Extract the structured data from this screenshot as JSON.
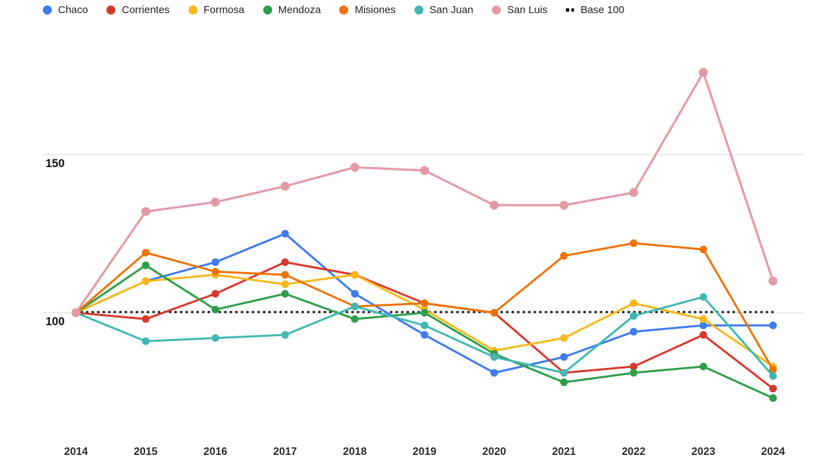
{
  "chart_data": {
    "type": "line",
    "title": "",
    "xlabel": "",
    "ylabel": "",
    "x": [
      2014,
      2015,
      2016,
      2017,
      2018,
      2019,
      2020,
      2021,
      2022,
      2023,
      2024
    ],
    "x_tick_labels": [
      "2014",
      "2015",
      "2016",
      "2017",
      "2018",
      "2019",
      "2020",
      "2021",
      "2022",
      "2023",
      "2024"
    ],
    "y_ticks": [
      100,
      150
    ],
    "y_tick_labels": [
      "100",
      "150"
    ],
    "ylim": [
      65,
      190
    ],
    "grid": "horizontal",
    "legend_position": "top",
    "series": [
      {
        "name": "Chaco",
        "color": "#3E7BF0",
        "values": [
          100,
          110,
          116,
          125,
          106,
          93,
          81,
          86,
          94,
          96,
          96
        ]
      },
      {
        "name": "Corrientes",
        "color": "#D6392C",
        "values": [
          100,
          98,
          106,
          116,
          112,
          103,
          100,
          81,
          83,
          93,
          76
        ]
      },
      {
        "name": "Formosa",
        "color": "#F7B819",
        "values": [
          100,
          110,
          112,
          109,
          112,
          101,
          88,
          92,
          103,
          98,
          83
        ]
      },
      {
        "name": "Mendoza",
        "color": "#2E9E48",
        "values": [
          100,
          115,
          101,
          106,
          98,
          100,
          87,
          78,
          81,
          83,
          73
        ]
      },
      {
        "name": "Misiones",
        "color": "#EE7309",
        "values": [
          100,
          119,
          113,
          112,
          102,
          103,
          100,
          118,
          122,
          120,
          82
        ]
      },
      {
        "name": "San Juan",
        "color": "#41B8B1",
        "values": [
          100,
          91,
          92,
          93,
          102,
          96,
          86,
          81,
          99,
          105,
          80
        ]
      },
      {
        "name": "San Luis",
        "color": "#E39AA7",
        "values": [
          100,
          132,
          135,
          140,
          146,
          145,
          134,
          134,
          138,
          176,
          110
        ]
      }
    ],
    "baseline": {
      "label": "Base 100",
      "value": 100,
      "style": "dotted",
      "color": "#111111"
    },
    "gridline_color": "#d9d9d9"
  },
  "legend": {
    "items": [
      "Chaco",
      "Corrientes",
      "Formosa",
      "Mendoza",
      "Misiones",
      "San Juan",
      "San Luis",
      "Base 100"
    ]
  }
}
